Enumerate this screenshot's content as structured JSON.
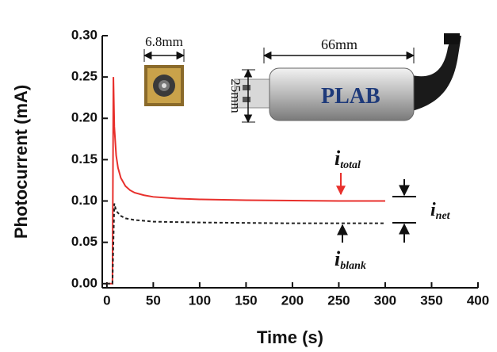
{
  "chart_data": {
    "type": "line",
    "xlabel": "Time (s)",
    "ylabel": "Photocurrent (mA)",
    "xlim": [
      -5,
      400
    ],
    "xticks": [
      0,
      50,
      100,
      150,
      200,
      250,
      300,
      350,
      400
    ],
    "ylim": [
      -0.005,
      0.3
    ],
    "yticks": [
      {
        "value": 0,
        "label": "0.00"
      },
      {
        "value": 0.05,
        "label": "0.05"
      },
      {
        "value": 0.1,
        "label": "0.10"
      },
      {
        "value": 0.15,
        "label": "0.15"
      },
      {
        "value": 0.2,
        "label": "0.20"
      },
      {
        "value": 0.25,
        "label": "0.25"
      },
      {
        "value": 0.3,
        "label": "0.30"
      }
    ],
    "series": [
      {
        "color": "#e8302c",
        "linestyle": "solid",
        "x": [
          0,
          6,
          7,
          8,
          10,
          12,
          15,
          20,
          25,
          30,
          40,
          50,
          75,
          100,
          150,
          200,
          250,
          300
        ],
        "values": [
          0,
          0,
          0.25,
          0.19,
          0.155,
          0.14,
          0.128,
          0.118,
          0.113,
          0.11,
          0.107,
          0.105,
          0.103,
          0.102,
          0.101,
          0.1005,
          0.1,
          0.1
        ]
      },
      {
        "color": "#222222",
        "linestyle": "dashed",
        "x": [
          0,
          6,
          7,
          8,
          10,
          15,
          20,
          30,
          50,
          100,
          200,
          300
        ],
        "values": [
          0,
          0,
          0.05,
          0.097,
          0.088,
          0.082,
          0.079,
          0.077,
          0.075,
          0.074,
          0.073,
          0.073
        ]
      }
    ],
    "annotations": {
      "sensor_width": "6.8mm",
      "usb_length": "66mm",
      "usb_height": "25mm",
      "i_total": {
        "text": "i",
        "sub": "total"
      },
      "i_blank": {
        "text": "i",
        "sub": "blank"
      },
      "i_net": {
        "text": "i",
        "sub": "net"
      }
    }
  }
}
